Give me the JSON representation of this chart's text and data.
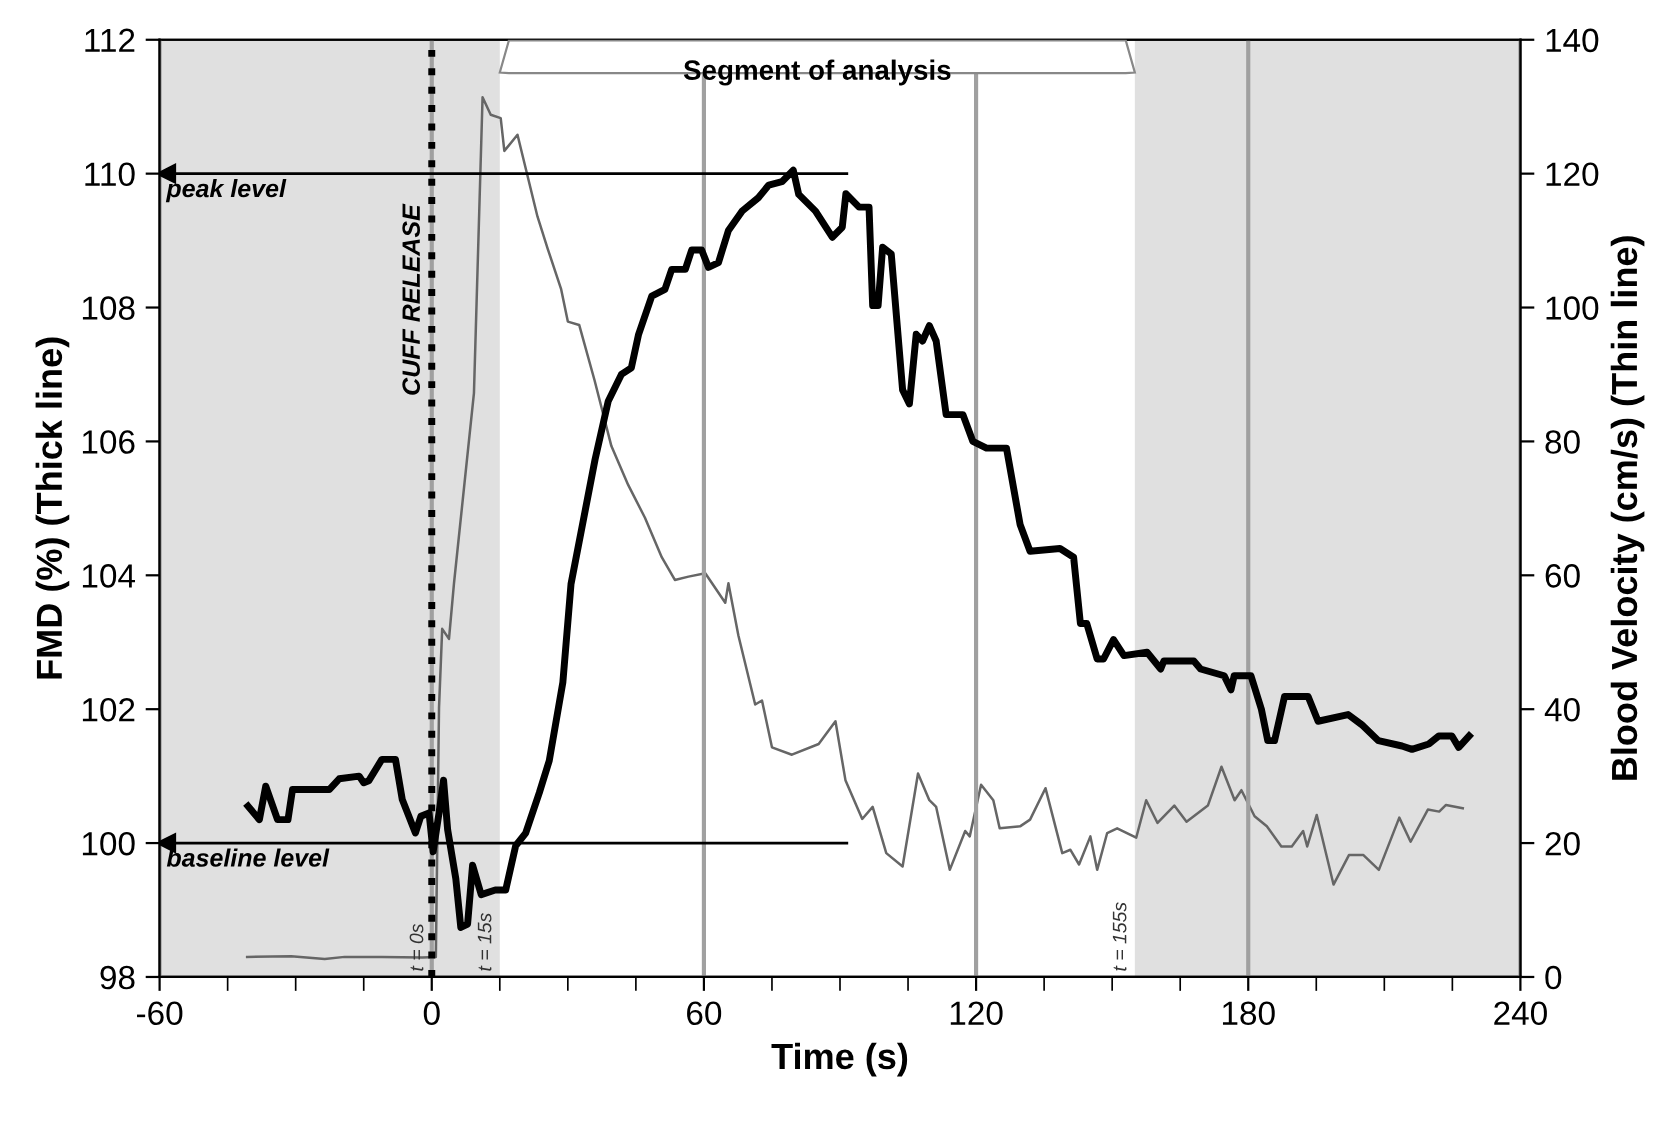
{
  "chart_data": {
    "type": "line",
    "xlabel": "Time (s)",
    "ylabel": "FMD (%) (Thick line)",
    "y2label": "Blood Velocity (cm/s) (Thin line)",
    "xlim": [
      -60,
      240
    ],
    "xticks": [
      -60,
      {
        "value": -45,
        "label": null
      },
      {
        "value": -30,
        "label": null
      },
      {
        "value": -15,
        "label": null
      },
      0,
      {
        "value": 15,
        "label": null
      },
      {
        "value": 30,
        "label": null
      },
      {
        "value": 45,
        "label": null
      },
      60,
      {
        "value": 75,
        "label": null
      },
      {
        "value": 90,
        "label": null
      },
      {
        "value": 105,
        "label": null
      },
      120,
      {
        "value": 135,
        "label": null
      },
      {
        "value": 150,
        "label": null
      },
      {
        "value": 165,
        "label": null
      },
      180,
      {
        "value": 195,
        "label": null
      },
      {
        "value": 210,
        "label": null
      },
      {
        "value": 225,
        "label": null
      },
      240
    ],
    "ylim": [
      98,
      112
    ],
    "yticks": [
      98,
      100,
      102,
      104,
      106,
      108,
      110,
      112
    ],
    "y2lim": [
      0,
      140
    ],
    "y2ticks": [
      0,
      20,
      40,
      60,
      80,
      100,
      120,
      140
    ],
    "grid": "x",
    "series": [
      {
        "color": "#000000",
        "x": [
          -40.5,
          -38,
          -36.6,
          -34,
          -31.7,
          -30.7,
          -22.6,
          -20.4,
          -16,
          -15,
          -13.9,
          -11,
          -8,
          -6.5,
          -3.6,
          -2.4,
          -0.6,
          0.3,
          1.6,
          2.6,
          3.5,
          5.3,
          6.4,
          7.9,
          9,
          10.9,
          14,
          16.3,
          18.5,
          20.7,
          23.7,
          25.9,
          28.9,
          30.7,
          36,
          38.9,
          41.8,
          44,
          45.6,
          48.5,
          51.4,
          52.9,
          55.9,
          57.3,
          59.5,
          61,
          63.2,
          65.4,
          68.4,
          72,
          74.3,
          77.2,
          79.7,
          80.9,
          84.6,
          88.3,
          90.5,
          91.3,
          94.2,
          96.4,
          97.2,
          98.4,
          99.4,
          101.3,
          103.8,
          105.3,
          106.8,
          108.2,
          109.7,
          111.2,
          113.4,
          117.1,
          119.3,
          122.3,
          126.7,
          129.7,
          131.9,
          138.5,
          141.5,
          143,
          144.4,
          146.7,
          148.1,
          150.3,
          152.6,
          157.7,
          160.7,
          161.4,
          168,
          169.5,
          174.7,
          176.2,
          176.9,
          180.6,
          182.9,
          184.3,
          185.8,
          188,
          193.2,
          195.4,
          202,
          205,
          208.7,
          213.9,
          216.1,
          219.8,
          222,
          224.9,
          226.4,
          228.7
        ],
        "values": [
          100.55,
          100.35,
          100.85,
          100.35,
          100.35,
          100.8,
          100.8,
          100.96,
          101.0,
          100.9,
          100.93,
          101.25,
          101.25,
          100.65,
          100.15,
          100.4,
          100.45,
          99.87,
          100.45,
          100.94,
          100.2,
          99.47,
          98.74,
          98.79,
          99.67,
          99.23,
          99.3,
          99.3,
          99.96,
          100.15,
          100.75,
          101.23,
          102.4,
          103.87,
          105.73,
          106.6,
          107.0,
          107.1,
          107.6,
          108.17,
          108.27,
          108.57,
          108.57,
          108.86,
          108.86,
          108.6,
          108.67,
          109.15,
          109.44,
          109.64,
          109.83,
          109.88,
          110.05,
          109.69,
          109.44,
          109.05,
          109.2,
          109.7,
          109.5,
          109.5,
          108.03,
          108.03,
          108.9,
          108.8,
          106.77,
          106.56,
          107.6,
          107.5,
          107.73,
          107.5,
          106.4,
          106.4,
          106.0,
          105.9,
          105.9,
          104.76,
          104.36,
          104.4,
          104.27,
          103.28,
          103.28,
          102.75,
          102.75,
          103.04,
          102.8,
          102.85,
          102.6,
          102.72,
          102.72,
          102.6,
          102.5,
          102.29,
          102.5,
          102.5,
          102.0,
          101.53,
          101.53,
          102.19,
          102.19,
          101.82,
          101.92,
          101.77,
          101.53,
          101.45,
          101.4,
          101.48,
          101.6,
          101.6,
          101.43,
          101.6
        ]
      },
      {
        "color": "#666666",
        "axis": "y2",
        "x": [
          -40.7,
          -31,
          -23.6,
          -19.2,
          -11,
          -2.1,
          0.9,
          1.6,
          2.3,
          3.8,
          4.9,
          9.3,
          11.2,
          13,
          15.2,
          16,
          18.9,
          23.3,
          25.6,
          28.5,
          30,
          32.5,
          35.9,
          39.6,
          43.3,
          47,
          50.7,
          53.6,
          56.6,
          60.3,
          64.7,
          65.4,
          67.6,
          71.3,
          72.8,
          75,
          79.4,
          85.3,
          89,
          91.2,
          94.9,
          97.2,
          100.2,
          103.8,
          107.2,
          109.7,
          111.2,
          114.2,
          117.6,
          118.6,
          121.1,
          123.8,
          125.2,
          129.7,
          131.9,
          135.3,
          139,
          140.8,
          142.7,
          145.2,
          146.7,
          148.9,
          151.1,
          155.3,
          157.5,
          160,
          163.7,
          166.4,
          171.1,
          174.1,
          177,
          178.5,
          181.4,
          184.1,
          187.3,
          189.6,
          192.1,
          193,
          195.1,
          198.8,
          202.2,
          205.4,
          208.8,
          213.3,
          215.8,
          219.6,
          222.1,
          223.6,
          227.3
        ],
        "values": [
          3.0,
          3.1,
          2.7,
          3.0,
          3.0,
          2.9,
          3.0,
          40.2,
          52,
          50.5,
          58.8,
          87.2,
          131.4,
          128.8,
          128.3,
          123.4,
          125.8,
          113.6,
          108.7,
          102.8,
          97.9,
          97.4,
          89.1,
          79.3,
          73.5,
          68.6,
          62.7,
          59.3,
          59.8,
          60.3,
          55.9,
          58.8,
          51,
          40.7,
          41.3,
          34.3,
          33.2,
          34.8,
          38.2,
          29.4,
          23.6,
          25.4,
          18.5,
          16.5,
          30.4,
          26.4,
          25.4,
          16.0,
          21.8,
          21.0,
          28.7,
          26.4,
          22.2,
          22.5,
          23.5,
          28.2,
          18.5,
          19.0,
          16.8,
          21.0,
          16.0,
          21.5,
          22.2,
          20.8,
          26.4,
          23.0,
          25.6,
          23.2,
          25.6,
          31.4,
          26.4,
          27.9,
          24.0,
          22.5,
          19.5,
          19.5,
          21.8,
          19.5,
          24.2,
          13.8,
          18.2,
          18.2,
          16.0,
          23.8,
          20.2,
          25.0,
          24.7,
          25.7,
          25.2
        ]
      }
    ],
    "bands": [
      {
        "axis": "x",
        "from": -60,
        "to": 15,
        "color": "#e0e0e0"
      },
      {
        "axis": "x",
        "from": 155,
        "to": 240,
        "color": "#e0e0e0"
      }
    ],
    "ref_lines": [
      {
        "axis": "x",
        "value": 0,
        "label": "CUFF RELEASE",
        "color": "#000000",
        "line_style": "dotted"
      },
      {
        "axis": "y",
        "value": 110,
        "label": "peak level",
        "color": "#000000",
        "line_style": "solid"
      },
      {
        "axis": "y",
        "value": 100,
        "label": "baseline level",
        "color": "#000000",
        "line_style": "solid"
      }
    ],
    "annotations": [
      "Segment of analysis",
      {
        "text": "t = 0s",
        "x": 0,
        "y": 98
      },
      {
        "text": "t = 15s",
        "x": 15,
        "y": 98
      },
      {
        "text": "t = 155s",
        "x": 155,
        "y": 98
      }
    ]
  }
}
